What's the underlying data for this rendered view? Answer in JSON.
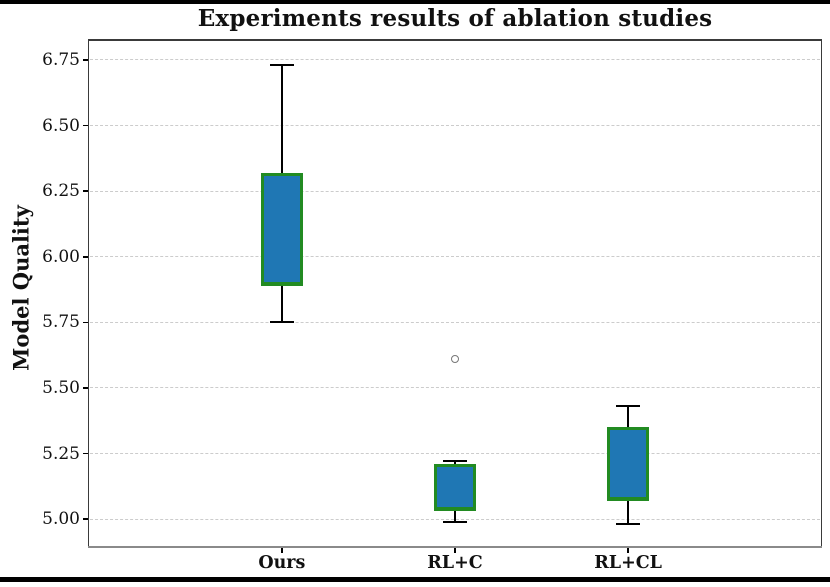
{
  "title": "Experiments results of ablation studies",
  "chart_data": {
    "type": "boxplot",
    "title": "Experiments results of ablation studies",
    "xlabel": "",
    "ylabel": "Model Quality",
    "categories": [
      "Ours",
      "RL+C",
      "RL+CL"
    ],
    "ylim": [
      4.89,
      6.83
    ],
    "xlim": [
      -0.12,
      4.12
    ],
    "yticks": [
      5.0,
      5.25,
      5.5,
      5.75,
      6.0,
      6.25,
      6.5,
      6.75
    ],
    "ytick_labels": [
      "5.00",
      "5.25",
      "5.50",
      "5.75",
      "6.00",
      "6.25",
      "6.50",
      "6.75"
    ],
    "grid": "horizontal-dashed",
    "legend": "none",
    "series": [
      {
        "label": "Ours",
        "position": 1,
        "whisker_low": 5.75,
        "q1": 5.89,
        "median": 5.9,
        "q3": 6.32,
        "whisker_high": 6.73,
        "outliers": []
      },
      {
        "label": "RL+C",
        "position": 2,
        "whisker_low": 4.99,
        "q1": 5.03,
        "median": 5.04,
        "q3": 5.21,
        "whisker_high": 5.22,
        "outliers": [
          5.61
        ]
      },
      {
        "label": "RL+CL",
        "position": 3,
        "whisker_low": 4.98,
        "q1": 5.07,
        "median": 5.08,
        "q3": 5.35,
        "whisker_high": 5.43,
        "outliers": []
      }
    ],
    "colors": {
      "box_fill": "#1f77b4",
      "box_edge": "#228B22",
      "median": "#228B22",
      "whisker": "#000000",
      "outlier_edge": "#777777",
      "grid": "#cccccc",
      "spine": "#3a3a3a",
      "bottom_spine": "#8a8a8a",
      "frame_rule": "#000000"
    }
  }
}
